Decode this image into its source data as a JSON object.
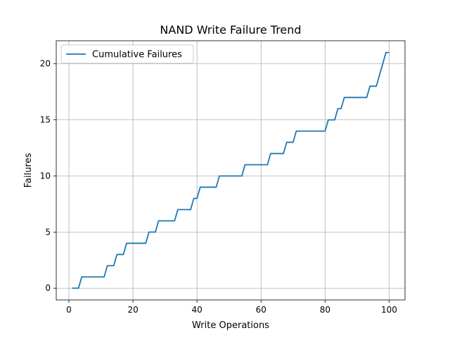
{
  "chart_data": {
    "type": "line",
    "title": "NAND Write Failure Trend",
    "xlabel": "Write Operations",
    "ylabel": "Failures",
    "xlim": [
      -3.95,
      104.95
    ],
    "ylim": [
      -1.05,
      22.05
    ],
    "xticks": [
      0,
      20,
      40,
      60,
      80,
      100
    ],
    "yticks": [
      0,
      5,
      10,
      15,
      20
    ],
    "grid": true,
    "legend_position": "upper-left",
    "series": [
      {
        "name": "Cumulative Failures",
        "color": "#1f77b4",
        "x": [
          1,
          2,
          3,
          4,
          5,
          6,
          7,
          8,
          9,
          10,
          11,
          12,
          13,
          14,
          15,
          16,
          17,
          18,
          19,
          20,
          21,
          22,
          23,
          24,
          25,
          26,
          27,
          28,
          29,
          30,
          31,
          32,
          33,
          34,
          35,
          36,
          37,
          38,
          39,
          40,
          41,
          42,
          43,
          44,
          45,
          46,
          47,
          48,
          49,
          50,
          51,
          52,
          53,
          54,
          55,
          56,
          57,
          58,
          59,
          60,
          61,
          62,
          63,
          64,
          65,
          66,
          67,
          68,
          69,
          70,
          71,
          72,
          73,
          74,
          75,
          76,
          77,
          78,
          79,
          80,
          81,
          82,
          83,
          84,
          85,
          86,
          87,
          88,
          89,
          90,
          91,
          92,
          93,
          94,
          95,
          96,
          97,
          98,
          99,
          100
        ],
        "y": [
          0,
          0,
          0,
          1,
          1,
          1,
          1,
          1,
          1,
          1,
          1,
          2,
          2,
          2,
          3,
          3,
          3,
          4,
          4,
          4,
          4,
          4,
          4,
          4,
          5,
          5,
          5,
          6,
          6,
          6,
          6,
          6,
          6,
          7,
          7,
          7,
          7,
          7,
          8,
          8,
          9,
          9,
          9,
          9,
          9,
          9,
          10,
          10,
          10,
          10,
          10,
          10,
          10,
          10,
          11,
          11,
          11,
          11,
          11,
          11,
          11,
          11,
          12,
          12,
          12,
          12,
          12,
          13,
          13,
          13,
          14,
          14,
          14,
          14,
          14,
          14,
          14,
          14,
          14,
          14,
          15,
          15,
          15,
          16,
          16,
          17,
          17,
          17,
          17,
          17,
          17,
          17,
          17,
          18,
          18,
          18,
          19,
          20,
          21,
          21
        ]
      }
    ]
  }
}
